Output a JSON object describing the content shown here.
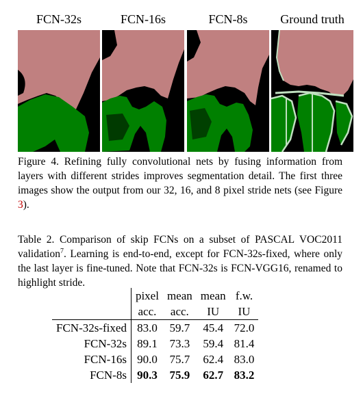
{
  "figure": {
    "panel_labels": [
      "FCN-32s",
      "FCN-16s",
      "FCN-8s",
      "Ground truth"
    ],
    "colors": {
      "background": "#000000",
      "person": "#c08080",
      "bicycle": "#008000",
      "boundary": "#c0e0c0"
    },
    "caption_lead": "Figure 4.",
    "caption_text": " Refining fully convolutional nets by fusing information from layers with different strides improves segmentation detail. The first three images show the output from our 32, 16, and 8 pixel stride nets (see Figure ",
    "caption_ref": "3",
    "caption_end": ")."
  },
  "table": {
    "caption_lead": "Table 2.",
    "caption_text_1": " Comparison of skip FCNs on a subset of PASCAL VOC2011 validation",
    "footnote_mark": "7",
    "caption_text_2": ". Learning is end-to-end, except for FCN-32s-fixed, where only the last layer is fine-tuned. Note that FCN-32s is FCN-VGG16, renamed to highlight stride.",
    "header_row1": [
      "pixel",
      "mean",
      "mean",
      "f.w."
    ],
    "header_row2": [
      "acc.",
      "acc.",
      "IU",
      "IU"
    ],
    "rows": [
      {
        "name": "FCN-32s-fixed",
        "values": [
          "83.0",
          "59.7",
          "45.4",
          "72.0"
        ]
      },
      {
        "name": "FCN-32s",
        "values": [
          "89.1",
          "73.3",
          "59.4",
          "81.4"
        ]
      },
      {
        "name": "FCN-16s",
        "values": [
          "90.0",
          "75.7",
          "62.4",
          "83.0"
        ]
      },
      {
        "name": "FCN-8s",
        "values": [
          "90.3",
          "75.9",
          "62.7",
          "83.2"
        ]
      }
    ]
  }
}
